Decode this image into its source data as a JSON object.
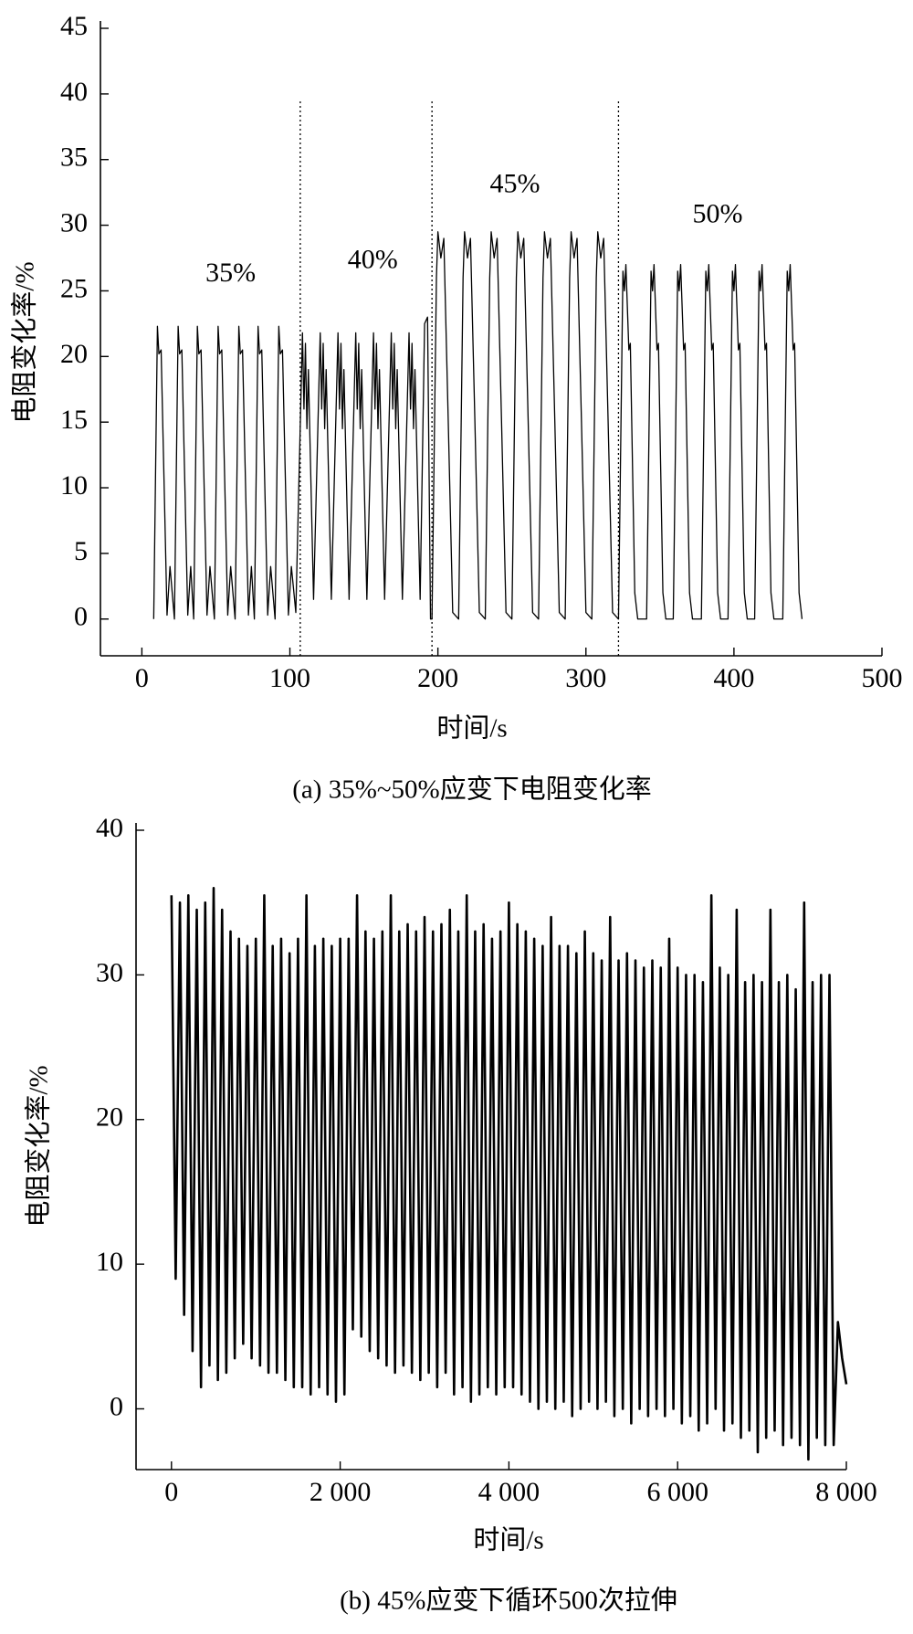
{
  "chart_data": [
    {
      "type": "line",
      "caption": "(a) 35%~50%应变下电阻变化率",
      "x_label": "时间/s",
      "y_label": "电阻变化率/%",
      "color": "#000000",
      "xlim": [
        -28,
        500
      ],
      "xticks": [
        0,
        100,
        200,
        300,
        400,
        500
      ],
      "ylim": [
        -2.8,
        45
      ],
      "yticks": [
        0,
        5,
        10,
        15,
        20,
        25,
        30,
        35,
        40,
        45
      ],
      "x": [
        8,
        10.5,
        11.5,
        13,
        17,
        19,
        22,
        24.5,
        25.5,
        27,
        31,
        33,
        35,
        37.5,
        38.5,
        40,
        44,
        46,
        49,
        51.5,
        52.5,
        54,
        58,
        60,
        63,
        65.5,
        66.5,
        68,
        72,
        74,
        76,
        78.5,
        79.5,
        81,
        85,
        87,
        90,
        92.5,
        93.5,
        95,
        99,
        101,
        104,
        108.5,
        109.5,
        110.5,
        111.5,
        112.5,
        116,
        120.5,
        121.5,
        122.5,
        123.5,
        124.5,
        128,
        132.5,
        133.5,
        134.5,
        135.5,
        136.5,
        140,
        144.5,
        145.5,
        146.5,
        147.5,
        148.5,
        152,
        156.5,
        157.5,
        158.5,
        159.5,
        160.5,
        164,
        168.5,
        169.5,
        170.5,
        171.5,
        172.5,
        176,
        180.5,
        181.5,
        182.5,
        183.5,
        184.5,
        188,
        191,
        193,
        195,
        196,
        199,
        200,
        202,
        204,
        207,
        210,
        214,
        217,
        218,
        220,
        222,
        225,
        228,
        232,
        235,
        236,
        238,
        240,
        243,
        246,
        250,
        253,
        254,
        256,
        258,
        261,
        264,
        268,
        271,
        272,
        274,
        276,
        279,
        282,
        286,
        289,
        290,
        292,
        294,
        297,
        300,
        304,
        307,
        308,
        310,
        312,
        315,
        318,
        322,
        325,
        326,
        327,
        329,
        330,
        333,
        335,
        341,
        344,
        345,
        346,
        348,
        349,
        352,
        354,
        359,
        362,
        363,
        364,
        366,
        367,
        370,
        372,
        378,
        381,
        382,
        383,
        385,
        386,
        389,
        391,
        396,
        399,
        400,
        401,
        403,
        404,
        407,
        409,
        414,
        417,
        418,
        419,
        421,
        422,
        425,
        427,
        433,
        436,
        437,
        438,
        440,
        441,
        444,
        446
      ],
      "values": [
        0,
        22.3,
        20.2,
        20.5,
        0.3,
        4,
        0,
        22.3,
        20.2,
        20.5,
        0.3,
        4,
        0,
        22.3,
        20.2,
        20.5,
        0.3,
        4,
        0,
        22.3,
        20.2,
        20.5,
        0.3,
        4,
        0,
        22.3,
        20.2,
        20.5,
        0.3,
        4,
        0,
        22.3,
        20.2,
        20.5,
        0.3,
        4,
        0,
        22.3,
        20.2,
        20.5,
        0.3,
        4,
        0.5,
        21.8,
        16,
        21,
        14.5,
        19,
        1.5,
        21.8,
        16,
        21,
        14.5,
        19,
        1.5,
        21.8,
        16,
        21,
        14.5,
        19,
        1.5,
        21.8,
        16,
        21,
        14.5,
        19,
        1.5,
        21.8,
        16,
        21,
        14.5,
        19,
        1.5,
        21.8,
        16,
        21,
        14.5,
        19,
        1.5,
        21.8,
        16,
        21,
        14.5,
        19,
        1.5,
        22.5,
        23,
        0,
        0,
        26,
        29.5,
        27.5,
        29,
        15,
        0.5,
        0,
        26,
        29.5,
        27.5,
        29,
        15,
        0.5,
        0,
        26,
        29.5,
        27.5,
        29,
        15,
        0.5,
        0,
        26,
        29.5,
        27.5,
        29,
        15,
        0.5,
        0,
        26,
        29.5,
        27.5,
        29,
        15,
        0.5,
        0,
        26,
        29.5,
        27.5,
        29,
        15,
        0.5,
        0,
        26,
        29.5,
        27.5,
        29,
        15,
        0.5,
        0,
        26.5,
        25,
        27,
        20.5,
        21,
        2,
        0,
        0,
        26.5,
        25,
        27,
        20.5,
        21,
        2,
        0,
        0,
        26.5,
        25,
        27,
        20.5,
        21,
        2,
        0,
        0,
        26.5,
        25,
        27,
        20.5,
        21,
        2,
        0,
        0,
        26.5,
        25,
        27,
        20.5,
        21,
        2,
        0,
        0,
        26.5,
        25,
        27,
        20.5,
        21,
        2,
        0,
        0,
        26.5,
        25,
        27,
        20.5,
        21,
        2,
        0
      ],
      "vlines": [
        {
          "x": 107,
          "top": 39.6
        },
        {
          "x": 196,
          "top": 39.6
        },
        {
          "x": 322,
          "top": 39.6
        }
      ],
      "annotations": [
        {
          "text": "35%",
          "x": 60,
          "y": 26.2
        },
        {
          "text": "40%",
          "x": 156,
          "y": 27.2
        },
        {
          "text": "45%",
          "x": 252,
          "y": 33
        },
        {
          "text": "50%",
          "x": 389,
          "y": 30.7
        }
      ]
    },
    {
      "type": "line",
      "caption": "(b) 45%应变下循环500次拉伸",
      "x_label": "时间/s",
      "y_label": "电阻变化率/%",
      "color": "#000000",
      "xlim": [
        -420,
        8000
      ],
      "xticks": [
        0,
        {
          "value": 2000,
          "label": "2 000"
        },
        {
          "value": 4000,
          "label": "4 000"
        },
        {
          "value": 6000,
          "label": "6 000"
        },
        {
          "value": 8000,
          "label": "8 000"
        }
      ],
      "ylim": [
        -4.2,
        40
      ],
      "yticks": [
        0,
        10,
        20,
        30,
        40
      ],
      "x": [
        0,
        50,
        100,
        150,
        200,
        250,
        300,
        350,
        400,
        450,
        500,
        550,
        600,
        650,
        700,
        750,
        800,
        850,
        900,
        950,
        1000,
        1050,
        1100,
        1150,
        1200,
        1250,
        1300,
        1350,
        1400,
        1450,
        1500,
        1550,
        1600,
        1650,
        1700,
        1750,
        1800,
        1850,
        1900,
        1950,
        2000,
        2050,
        2100,
        2150,
        2200,
        2250,
        2300,
        2350,
        2400,
        2450,
        2500,
        2550,
        2600,
        2650,
        2700,
        2750,
        2800,
        2850,
        2900,
        2950,
        3000,
        3050,
        3100,
        3150,
        3200,
        3250,
        3300,
        3350,
        3400,
        3450,
        3500,
        3550,
        3600,
        3650,
        3700,
        3750,
        3800,
        3850,
        3900,
        3950,
        4000,
        4050,
        4100,
        4150,
        4200,
        4250,
        4300,
        4350,
        4400,
        4450,
        4500,
        4550,
        4600,
        4650,
        4700,
        4750,
        4800,
        4850,
        4900,
        4950,
        5000,
        5050,
        5100,
        5150,
        5200,
        5250,
        5300,
        5350,
        5400,
        5450,
        5500,
        5550,
        5600,
        5650,
        5700,
        5750,
        5800,
        5850,
        5900,
        5950,
        6000,
        6050,
        6100,
        6150,
        6200,
        6250,
        6300,
        6350,
        6400,
        6450,
        6500,
        6550,
        6600,
        6650,
        6700,
        6750,
        6800,
        6850,
        6900,
        6950,
        7000,
        7050,
        7100,
        7150,
        7200,
        7250,
        7300,
        7350,
        7400,
        7450,
        7500,
        7550,
        7600,
        7650,
        7700,
        7750,
        7800,
        7850,
        7900,
        7950,
        8000
      ],
      "values": [
        35.5,
        9,
        35,
        6.5,
        35.5,
        4,
        34.5,
        1.5,
        35,
        3,
        36,
        2,
        34.5,
        2.5,
        33,
        3.5,
        32.5,
        4.5,
        32,
        3.5,
        32.5,
        3,
        35.5,
        2.5,
        32,
        2.5,
        32.5,
        2,
        31.5,
        1.5,
        32.5,
        1.5,
        35.5,
        1,
        32,
        1.5,
        32.5,
        1,
        32,
        0.5,
        32.5,
        1,
        32.5,
        5.5,
        35.5,
        5,
        33,
        4,
        32.5,
        3.5,
        33,
        3,
        35.5,
        2.5,
        33,
        3,
        33.5,
        2.5,
        33,
        2,
        34,
        2.5,
        33,
        1.5,
        33.5,
        2.5,
        34.5,
        1,
        33,
        1.5,
        35.5,
        0.5,
        33,
        1,
        33.5,
        1.5,
        32.5,
        1,
        33,
        1.5,
        35,
        1.5,
        33.5,
        1,
        33,
        0.5,
        32.5,
        0,
        32,
        0.5,
        34,
        0,
        32,
        0.5,
        32,
        -0.5,
        31.5,
        0,
        33,
        0.5,
        31.5,
        0,
        31,
        0.5,
        34,
        -0.5,
        31,
        0,
        31.5,
        -1,
        31,
        0,
        30.5,
        -0.5,
        31,
        0,
        30.5,
        -0.5,
        32.5,
        0,
        30.5,
        -1,
        30,
        -0.5,
        30,
        -1.5,
        29.5,
        -1,
        35.5,
        0,
        30.5,
        -1.5,
        30,
        -1,
        34.5,
        -2,
        29.5,
        -1.5,
        30,
        -3,
        29.5,
        -2,
        34.5,
        -1.5,
        29.5,
        -2.5,
        30,
        -2,
        29,
        -2.5,
        35,
        -3.5,
        29.5,
        -2,
        30,
        -2.5,
        30,
        -2.5,
        6,
        3.5,
        1.7
      ]
    }
  ]
}
